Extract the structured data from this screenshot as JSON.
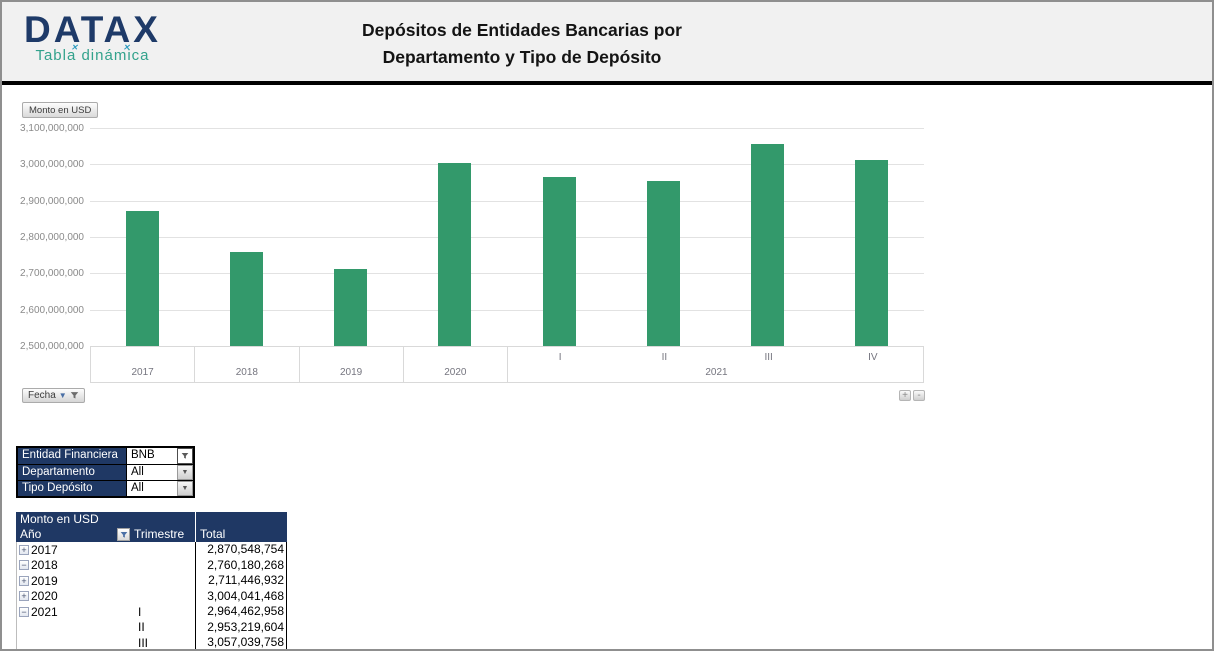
{
  "header": {
    "logo_title": "DATAX",
    "logo_subtitle": "Tabla dinámica",
    "title_line1": "Depósitos de Entidades Bancarias por",
    "title_line2": "Departamento y Tipo de Depósito"
  },
  "chart": {
    "value_field_button": "Monto en USD",
    "axis_field_button": "Fecha",
    "expand_button": "+",
    "collapse_button": "-",
    "y_ticks": [
      "3,100,000,000",
      "3,000,000,000",
      "2,900,000,000",
      "2,800,000,000",
      "2,700,000,000",
      "2,600,000,000",
      "2,500,000,000"
    ],
    "grid_color": "#e2e2e2"
  },
  "chart_data": {
    "type": "bar",
    "title": "Depósitos de Entidades Bancarias por Departamento y Tipo de Depósito",
    "categories": [
      "2017",
      "2018",
      "2019",
      "2020",
      "2021-I",
      "2021-II",
      "2021-III",
      "2021-IV"
    ],
    "values": [
      2870548754,
      2760180268,
      2711446932,
      3004041468,
      2964462958,
      2953219604,
      3057039758,
      3012000000
    ],
    "x_groups": [
      {
        "label": "2017",
        "span": 1,
        "subs": []
      },
      {
        "label": "2018",
        "span": 1,
        "subs": []
      },
      {
        "label": "2019",
        "span": 1,
        "subs": []
      },
      {
        "label": "2020",
        "span": 1,
        "subs": []
      },
      {
        "label": "2021",
        "span": 4,
        "subs": [
          "I",
          "II",
          "III",
          "IV"
        ]
      }
    ],
    "ylabel": "Monto en USD",
    "xlabel": "Fecha",
    "ylim": [
      2500000000,
      3100000000
    ],
    "grid": true,
    "legend": false,
    "bar_color": "#33996B"
  },
  "filters": {
    "rows": [
      {
        "label": "Entidad Financiera",
        "value": "BNB",
        "filtered": true
      },
      {
        "label": "Departamento",
        "value": "All",
        "filtered": false
      },
      {
        "label": "Tipo Depósito",
        "value": "All",
        "filtered": false
      }
    ]
  },
  "pivot": {
    "title": "Monto en USD",
    "columns": [
      "Año",
      "Trimestre",
      "Total"
    ],
    "rows": [
      {
        "expand": "plus",
        "year": "2017",
        "quarter": "",
        "total": "2,870,548,754"
      },
      {
        "expand": "minus",
        "year": "2018",
        "quarter": "",
        "total": "2,760,180,268"
      },
      {
        "expand": "plus",
        "year": "2019",
        "quarter": "",
        "total": "2,711,446,932"
      },
      {
        "expand": "plus",
        "year": "2020",
        "quarter": "",
        "total": "3,004,041,468"
      },
      {
        "expand": "minus",
        "year": "2021",
        "quarter": "I",
        "total": "2,964,462,958"
      },
      {
        "expand": "",
        "year": "",
        "quarter": "II",
        "total": "2,953,219,604"
      },
      {
        "expand": "",
        "year": "",
        "quarter": "III",
        "total": "3,057,039,758"
      }
    ]
  },
  "colors": {
    "navy": "#1F3864",
    "teal": "#33A28C",
    "bar_green": "#33996B",
    "header_band": "#F1F1F1"
  }
}
